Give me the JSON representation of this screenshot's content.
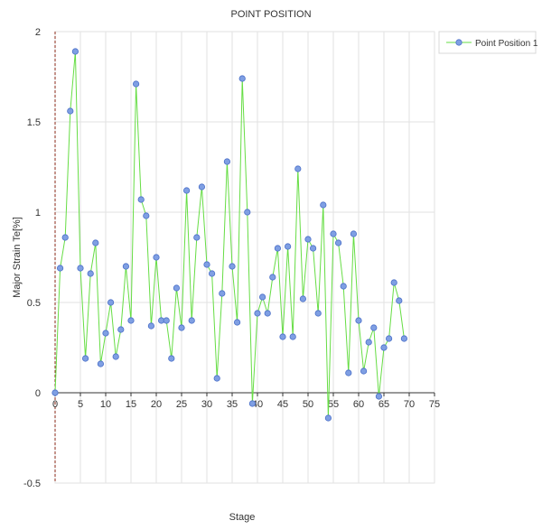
{
  "chart_data": {
    "type": "line",
    "title": "POINT POSITION",
    "xlabel": "Stage",
    "ylabel": "Major Strain Te[%]",
    "xlim": [
      0,
      75
    ],
    "ylim": [
      -0.5,
      2
    ],
    "x_ticks": [
      "0",
      "5",
      "10",
      "15",
      "20",
      "25",
      "30",
      "35",
      "40",
      "45",
      "50",
      "55",
      "60",
      "65",
      "70",
      "75"
    ],
    "y_ticks": [
      "-0.5",
      "0",
      "0.5",
      "1",
      "1.5",
      "2"
    ],
    "grid": true,
    "legend_position": "top-right",
    "series": [
      {
        "name": "Point Position 1",
        "line_color": "#66dd44",
        "marker_color": "#7f9fe3",
        "x": [
          0,
          1,
          2,
          3,
          4,
          5,
          6,
          7,
          8,
          9,
          10,
          11,
          12,
          13,
          14,
          15,
          16,
          17,
          18,
          19,
          20,
          21,
          22,
          23,
          24,
          25,
          26,
          27,
          28,
          29,
          30,
          31,
          32,
          33,
          34,
          35,
          36,
          37,
          38,
          39,
          40,
          41,
          42,
          43,
          44,
          45,
          46,
          47,
          48,
          49,
          50,
          51,
          52,
          53,
          54,
          55,
          56,
          57,
          58,
          59,
          60,
          61,
          62,
          63,
          64,
          65,
          66,
          67,
          68,
          69
        ],
        "y": [
          0.0,
          0.69,
          0.86,
          1.56,
          1.89,
          0.69,
          0.19,
          0.66,
          0.83,
          0.16,
          0.33,
          0.5,
          0.2,
          0.35,
          0.7,
          0.4,
          1.71,
          1.07,
          0.98,
          0.37,
          0.75,
          0.4,
          0.4,
          0.19,
          0.58,
          0.36,
          1.12,
          0.4,
          0.86,
          1.14,
          0.71,
          0.66,
          0.08,
          0.55,
          1.28,
          0.7,
          0.39,
          1.74,
          1.0,
          -0.06,
          0.44,
          0.53,
          0.44,
          0.64,
          0.8,
          0.31,
          0.81,
          0.31,
          1.24,
          0.52,
          0.85,
          0.8,
          0.44,
          1.04,
          -0.14,
          0.88,
          0.83,
          0.59,
          0.11,
          0.88,
          0.4,
          0.12,
          0.28,
          0.36,
          -0.02,
          0.25,
          0.3,
          0.61,
          0.51,
          0.3
        ]
      }
    ]
  }
}
